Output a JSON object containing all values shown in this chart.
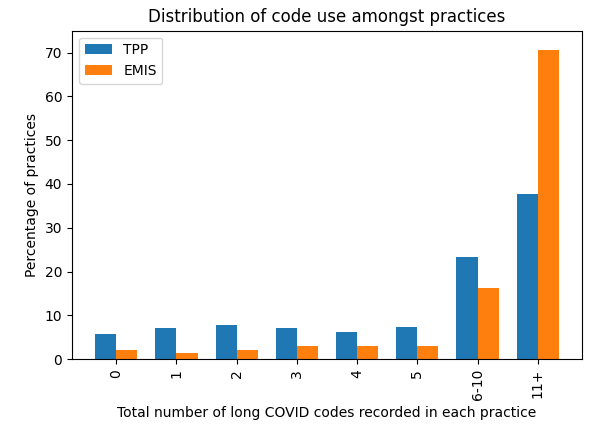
{
  "title": "Distribution of code use amongst practices",
  "xlabel": "Total number of long COVID codes recorded in each practice",
  "ylabel": "Percentage of practices",
  "categories": [
    "0",
    "1",
    "2",
    "3",
    "4",
    "5",
    "6-10",
    "11+"
  ],
  "tpp_values": [
    5.7,
    7.1,
    7.9,
    7.1,
    6.3,
    7.4,
    23.3,
    37.8
  ],
  "emis_values": [
    2.0,
    1.4,
    2.0,
    2.9,
    2.9,
    3.1,
    16.2,
    70.5
  ],
  "tpp_color": "#1f77b4",
  "emis_color": "#ff7f0e",
  "ylim": [
    0,
    75
  ],
  "legend_labels": [
    "TPP",
    "EMIS"
  ],
  "bar_width": 0.35,
  "figsize": [
    6.0,
    4.38
  ],
  "dpi": 100,
  "tick_rotation": 90,
  "title_fontsize": 12
}
